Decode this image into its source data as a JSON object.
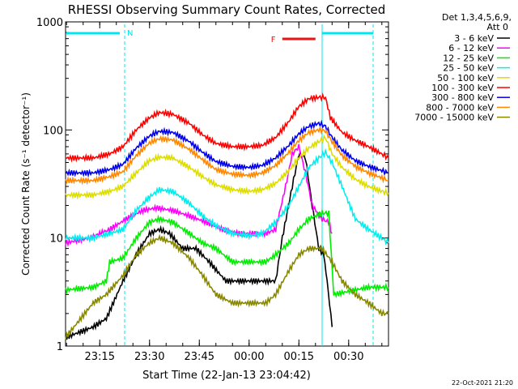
{
  "chart_data": {
    "type": "line",
    "title": "RHESSI Observing Summary Count Rates, Corrected",
    "xlabel": "Start Time (22-Jan-13 23:04:42)",
    "ylabel": "Corrected Count Rate (s⁻¹ detector⁻¹)",
    "y_scale": "log",
    "ylim": [
      1,
      1000
    ],
    "xlim": [
      "23:04:42",
      "00:42:00"
    ],
    "y_ticks": [
      "1",
      "10",
      "100",
      "1000"
    ],
    "x_ticks": [
      "23:15",
      "23:30",
      "23:45",
      "00:00",
      "00:15",
      "00:30"
    ],
    "grid": false,
    "legend_header": "Det 1,3,4,5,6,9,",
    "legend_header2": "Att 0",
    "legend_position": "top-right outside",
    "flags": {
      "N": {
        "label": "N",
        "color": "#00e8ef",
        "start": "23:04:42",
        "end": "23:22:30"
      },
      "F": {
        "label": "F",
        "color": "#ee1111",
        "start": "00:10:00",
        "end": "00:20:00"
      },
      "second_band_start": "00:22:00"
    },
    "timestamp": "22-Oct-2021 21:20",
    "series": [
      {
        "name": "3 - 6 keV",
        "color": "#000000",
        "points": [
          [
            "23:04:42",
            1.2
          ],
          [
            "23:13:00",
            1.5
          ],
          [
            "23:17:00",
            1.8
          ],
          [
            "23:22:00",
            4
          ],
          [
            "23:26:00",
            7
          ],
          [
            "23:30:00",
            11
          ],
          [
            "23:33:00",
            12
          ],
          [
            "23:36:00",
            11
          ],
          [
            "23:40:00",
            8
          ],
          [
            "23:44:00",
            8
          ],
          [
            "23:48:00",
            6
          ],
          [
            "23:53:00",
            4
          ],
          [
            "23:57:00",
            4
          ],
          [
            "00:01:00",
            4
          ],
          [
            "00:05:00",
            4
          ],
          [
            "00:08:00",
            4
          ],
          [
            "00:10:00",
            10
          ],
          [
            "00:13:00",
            30
          ],
          [
            "00:15:00",
            60
          ],
          [
            "00:17:00",
            55
          ],
          [
            "00:19:00",
            20
          ],
          [
            "00:21:00",
            8
          ],
          [
            "00:22:30",
            7
          ],
          [
            "00:23:30",
            4
          ],
          [
            "00:25:00",
            1.5
          ]
        ]
      },
      {
        "name": "6 - 12 keV",
        "color": "#ff00ff",
        "points": [
          [
            "23:04:42",
            9
          ],
          [
            "23:12:00",
            10
          ],
          [
            "23:18:00",
            12
          ],
          [
            "23:23:00",
            15
          ],
          [
            "23:28:00",
            18
          ],
          [
            "23:32:00",
            19
          ],
          [
            "23:37:00",
            18
          ],
          [
            "23:42:00",
            16
          ],
          [
            "23:47:00",
            14
          ],
          [
            "23:52:00",
            12
          ],
          [
            "23:57:00",
            11
          ],
          [
            "00:01:00",
            11
          ],
          [
            "00:05:00",
            11
          ],
          [
            "00:08:00",
            12
          ],
          [
            "00:11:00",
            30
          ],
          [
            "00:13:00",
            60
          ],
          [
            "00:15:00",
            70
          ],
          [
            "00:17:00",
            40
          ],
          [
            "00:19:00",
            20
          ],
          [
            "00:22:00",
            15
          ],
          [
            "00:24:00",
            14
          ],
          [
            "00:25:00",
            11
          ]
        ]
      },
      {
        "name": "12 - 25 keV",
        "color": "#00ee00",
        "points": [
          [
            "23:04:42",
            3.3
          ],
          [
            "23:13:00",
            3.5
          ],
          [
            "23:17:00",
            4
          ],
          [
            "23:18:00",
            6
          ],
          [
            "23:22:00",
            6.5
          ],
          [
            "23:26:00",
            10
          ],
          [
            "23:30:00",
            14
          ],
          [
            "23:33:00",
            15
          ],
          [
            "23:37:00",
            14
          ],
          [
            "23:42:00",
            11
          ],
          [
            "23:46:00",
            9
          ],
          [
            "23:50:00",
            8
          ],
          [
            "23:55:00",
            6
          ],
          [
            "00:00:00",
            6
          ],
          [
            "00:05:00",
            6
          ],
          [
            "00:08:00",
            7
          ],
          [
            "00:12:00",
            9
          ],
          [
            "00:15:00",
            12
          ],
          [
            "00:18:00",
            15
          ],
          [
            "00:22:00",
            17
          ],
          [
            "00:24:00",
            17
          ],
          [
            "00:25:30",
            3
          ],
          [
            "00:36:00",
            3.5
          ],
          [
            "00:42:00",
            3.5
          ]
        ]
      },
      {
        "name": "25 - 50 keV",
        "color": "#00eeee",
        "points": [
          [
            "23:04:42",
            10
          ],
          [
            "23:13:00",
            10
          ],
          [
            "23:18:00",
            11
          ],
          [
            "23:22:00",
            12
          ],
          [
            "23:26:00",
            18
          ],
          [
            "23:30:00",
            24
          ],
          [
            "23:33:00",
            28
          ],
          [
            "23:37:00",
            27
          ],
          [
            "23:42:00",
            21
          ],
          [
            "23:46:00",
            16
          ],
          [
            "23:50:00",
            13
          ],
          [
            "23:55:00",
            11
          ],
          [
            "00:00:00",
            10.5
          ],
          [
            "00:04:00",
            11
          ],
          [
            "00:08:00",
            14
          ],
          [
            "00:12:00",
            20
          ],
          [
            "00:15:00",
            30
          ],
          [
            "00:18:00",
            45
          ],
          [
            "00:21:00",
            55
          ],
          [
            "00:23:00",
            62
          ],
          [
            "00:25:00",
            50
          ],
          [
            "00:28:00",
            30
          ],
          [
            "00:32:00",
            15
          ],
          [
            "00:36:00",
            12
          ],
          [
            "00:40:00",
            10
          ],
          [
            "00:42:00",
            9
          ]
        ]
      },
      {
        "name": "50 - 100 keV",
        "color": "#dddd00",
        "points": [
          [
            "23:04:42",
            25
          ],
          [
            "23:13:00",
            25
          ],
          [
            "23:18:00",
            27
          ],
          [
            "23:22:00",
            30
          ],
          [
            "23:26:00",
            40
          ],
          [
            "23:30:00",
            52
          ],
          [
            "23:33:00",
            56
          ],
          [
            "23:37:00",
            55
          ],
          [
            "23:42:00",
            45
          ],
          [
            "23:46:00",
            37
          ],
          [
            "23:50:00",
            31
          ],
          [
            "23:55:00",
            28
          ],
          [
            "00:00:00",
            27
          ],
          [
            "00:04:00",
            28
          ],
          [
            "00:08:00",
            32
          ],
          [
            "00:12:00",
            42
          ],
          [
            "00:15:00",
            55
          ],
          [
            "00:18:00",
            68
          ],
          [
            "00:21:00",
            78
          ],
          [
            "00:23:00",
            85
          ],
          [
            "00:25:00",
            60
          ],
          [
            "00:28:00",
            45
          ],
          [
            "00:32:00",
            35
          ],
          [
            "00:36:00",
            30
          ],
          [
            "00:40:00",
            27
          ],
          [
            "00:42:00",
            26
          ]
        ]
      },
      {
        "name": "100 - 300 keV",
        "color": "#ff0000",
        "points": [
          [
            "23:04:42",
            55
          ],
          [
            "23:13:00",
            55
          ],
          [
            "23:18:00",
            60
          ],
          [
            "23:22:00",
            70
          ],
          [
            "23:26:00",
            100
          ],
          [
            "23:30:00",
            130
          ],
          [
            "23:33:00",
            145
          ],
          [
            "23:37:00",
            140
          ],
          [
            "23:42:00",
            115
          ],
          [
            "23:46:00",
            90
          ],
          [
            "23:50:00",
            75
          ],
          [
            "23:55:00",
            70
          ],
          [
            "00:00:00",
            70
          ],
          [
            "00:04:00",
            72
          ],
          [
            "00:08:00",
            85
          ],
          [
            "00:12:00",
            120
          ],
          [
            "00:15:00",
            165
          ],
          [
            "00:18:00",
            195
          ],
          [
            "00:21:00",
            200
          ],
          [
            "00:23:00",
            200
          ],
          [
            "00:24:30",
            130
          ],
          [
            "00:28:00",
            95
          ],
          [
            "00:32:00",
            80
          ],
          [
            "00:36:00",
            70
          ],
          [
            "00:40:00",
            60
          ],
          [
            "00:42:00",
            55
          ]
        ]
      },
      {
        "name": "300 - 800 keV",
        "color": "#0000ee",
        "points": [
          [
            "23:04:42",
            40
          ],
          [
            "23:13:00",
            40
          ],
          [
            "23:18:00",
            43
          ],
          [
            "23:22:00",
            48
          ],
          [
            "23:26:00",
            68
          ],
          [
            "23:30:00",
            88
          ],
          [
            "23:33:00",
            97
          ],
          [
            "23:37:00",
            95
          ],
          [
            "23:42:00",
            78
          ],
          [
            "23:46:00",
            62
          ],
          [
            "23:50:00",
            51
          ],
          [
            "23:55:00",
            46
          ],
          [
            "00:00:00",
            45
          ],
          [
            "00:04:00",
            47
          ],
          [
            "00:08:00",
            55
          ],
          [
            "00:12:00",
            72
          ],
          [
            "00:15:00",
            92
          ],
          [
            "00:18:00",
            108
          ],
          [
            "00:21:00",
            115
          ],
          [
            "00:23:00",
            108
          ],
          [
            "00:25:00",
            85
          ],
          [
            "00:28:00",
            65
          ],
          [
            "00:32:00",
            52
          ],
          [
            "00:36:00",
            46
          ],
          [
            "00:40:00",
            42
          ],
          [
            "00:42:00",
            40
          ]
        ]
      },
      {
        "name": "800 - 7000 keV",
        "color": "#ff8800",
        "points": [
          [
            "23:04:42",
            34
          ],
          [
            "23:13:00",
            34
          ],
          [
            "23:18:00",
            37
          ],
          [
            "23:22:00",
            41
          ],
          [
            "23:26:00",
            58
          ],
          [
            "23:30:00",
            76
          ],
          [
            "23:33:00",
            83
          ],
          [
            "23:37:00",
            81
          ],
          [
            "23:42:00",
            66
          ],
          [
            "23:46:00",
            53
          ],
          [
            "23:50:00",
            43
          ],
          [
            "23:55:00",
            39
          ],
          [
            "00:00:00",
            38
          ],
          [
            "00:04:00",
            40
          ],
          [
            "00:08:00",
            47
          ],
          [
            "00:12:00",
            62
          ],
          [
            "00:15:00",
            80
          ],
          [
            "00:18:00",
            95
          ],
          [
            "00:21:00",
            100
          ],
          [
            "00:23:00",
            98
          ],
          [
            "00:25:00",
            78
          ],
          [
            "00:28:00",
            58
          ],
          [
            "00:32:00",
            46
          ],
          [
            "00:36:00",
            40
          ],
          [
            "00:40:00",
            36
          ],
          [
            "00:42:00",
            34
          ]
        ]
      },
      {
        "name": "7000 - 15000 keV",
        "color": "#888800",
        "points": [
          [
            "23:04:42",
            1.2
          ],
          [
            "23:13:00",
            2.5
          ],
          [
            "23:17:00",
            3
          ],
          [
            "23:22:00",
            4.5
          ],
          [
            "23:26:00",
            7
          ],
          [
            "23:30:00",
            9
          ],
          [
            "23:33:00",
            10
          ],
          [
            "23:37:00",
            9
          ],
          [
            "23:42:00",
            6.5
          ],
          [
            "23:46:00",
            4.5
          ],
          [
            "23:50:00",
            3
          ],
          [
            "23:55:00",
            2.5
          ],
          [
            "00:00:00",
            2.5
          ],
          [
            "00:05:00",
            2.5
          ],
          [
            "00:08:00",
            3
          ],
          [
            "00:12:00",
            5
          ],
          [
            "00:15:00",
            7
          ],
          [
            "00:18:00",
            8
          ],
          [
            "00:22:00",
            8
          ],
          [
            "00:25:00",
            6
          ],
          [
            "00:28:00",
            4
          ],
          [
            "00:32:00",
            3
          ],
          [
            "00:36:00",
            2.5
          ],
          [
            "00:40:00",
            2
          ],
          [
            "00:42:00",
            2
          ]
        ]
      }
    ]
  }
}
